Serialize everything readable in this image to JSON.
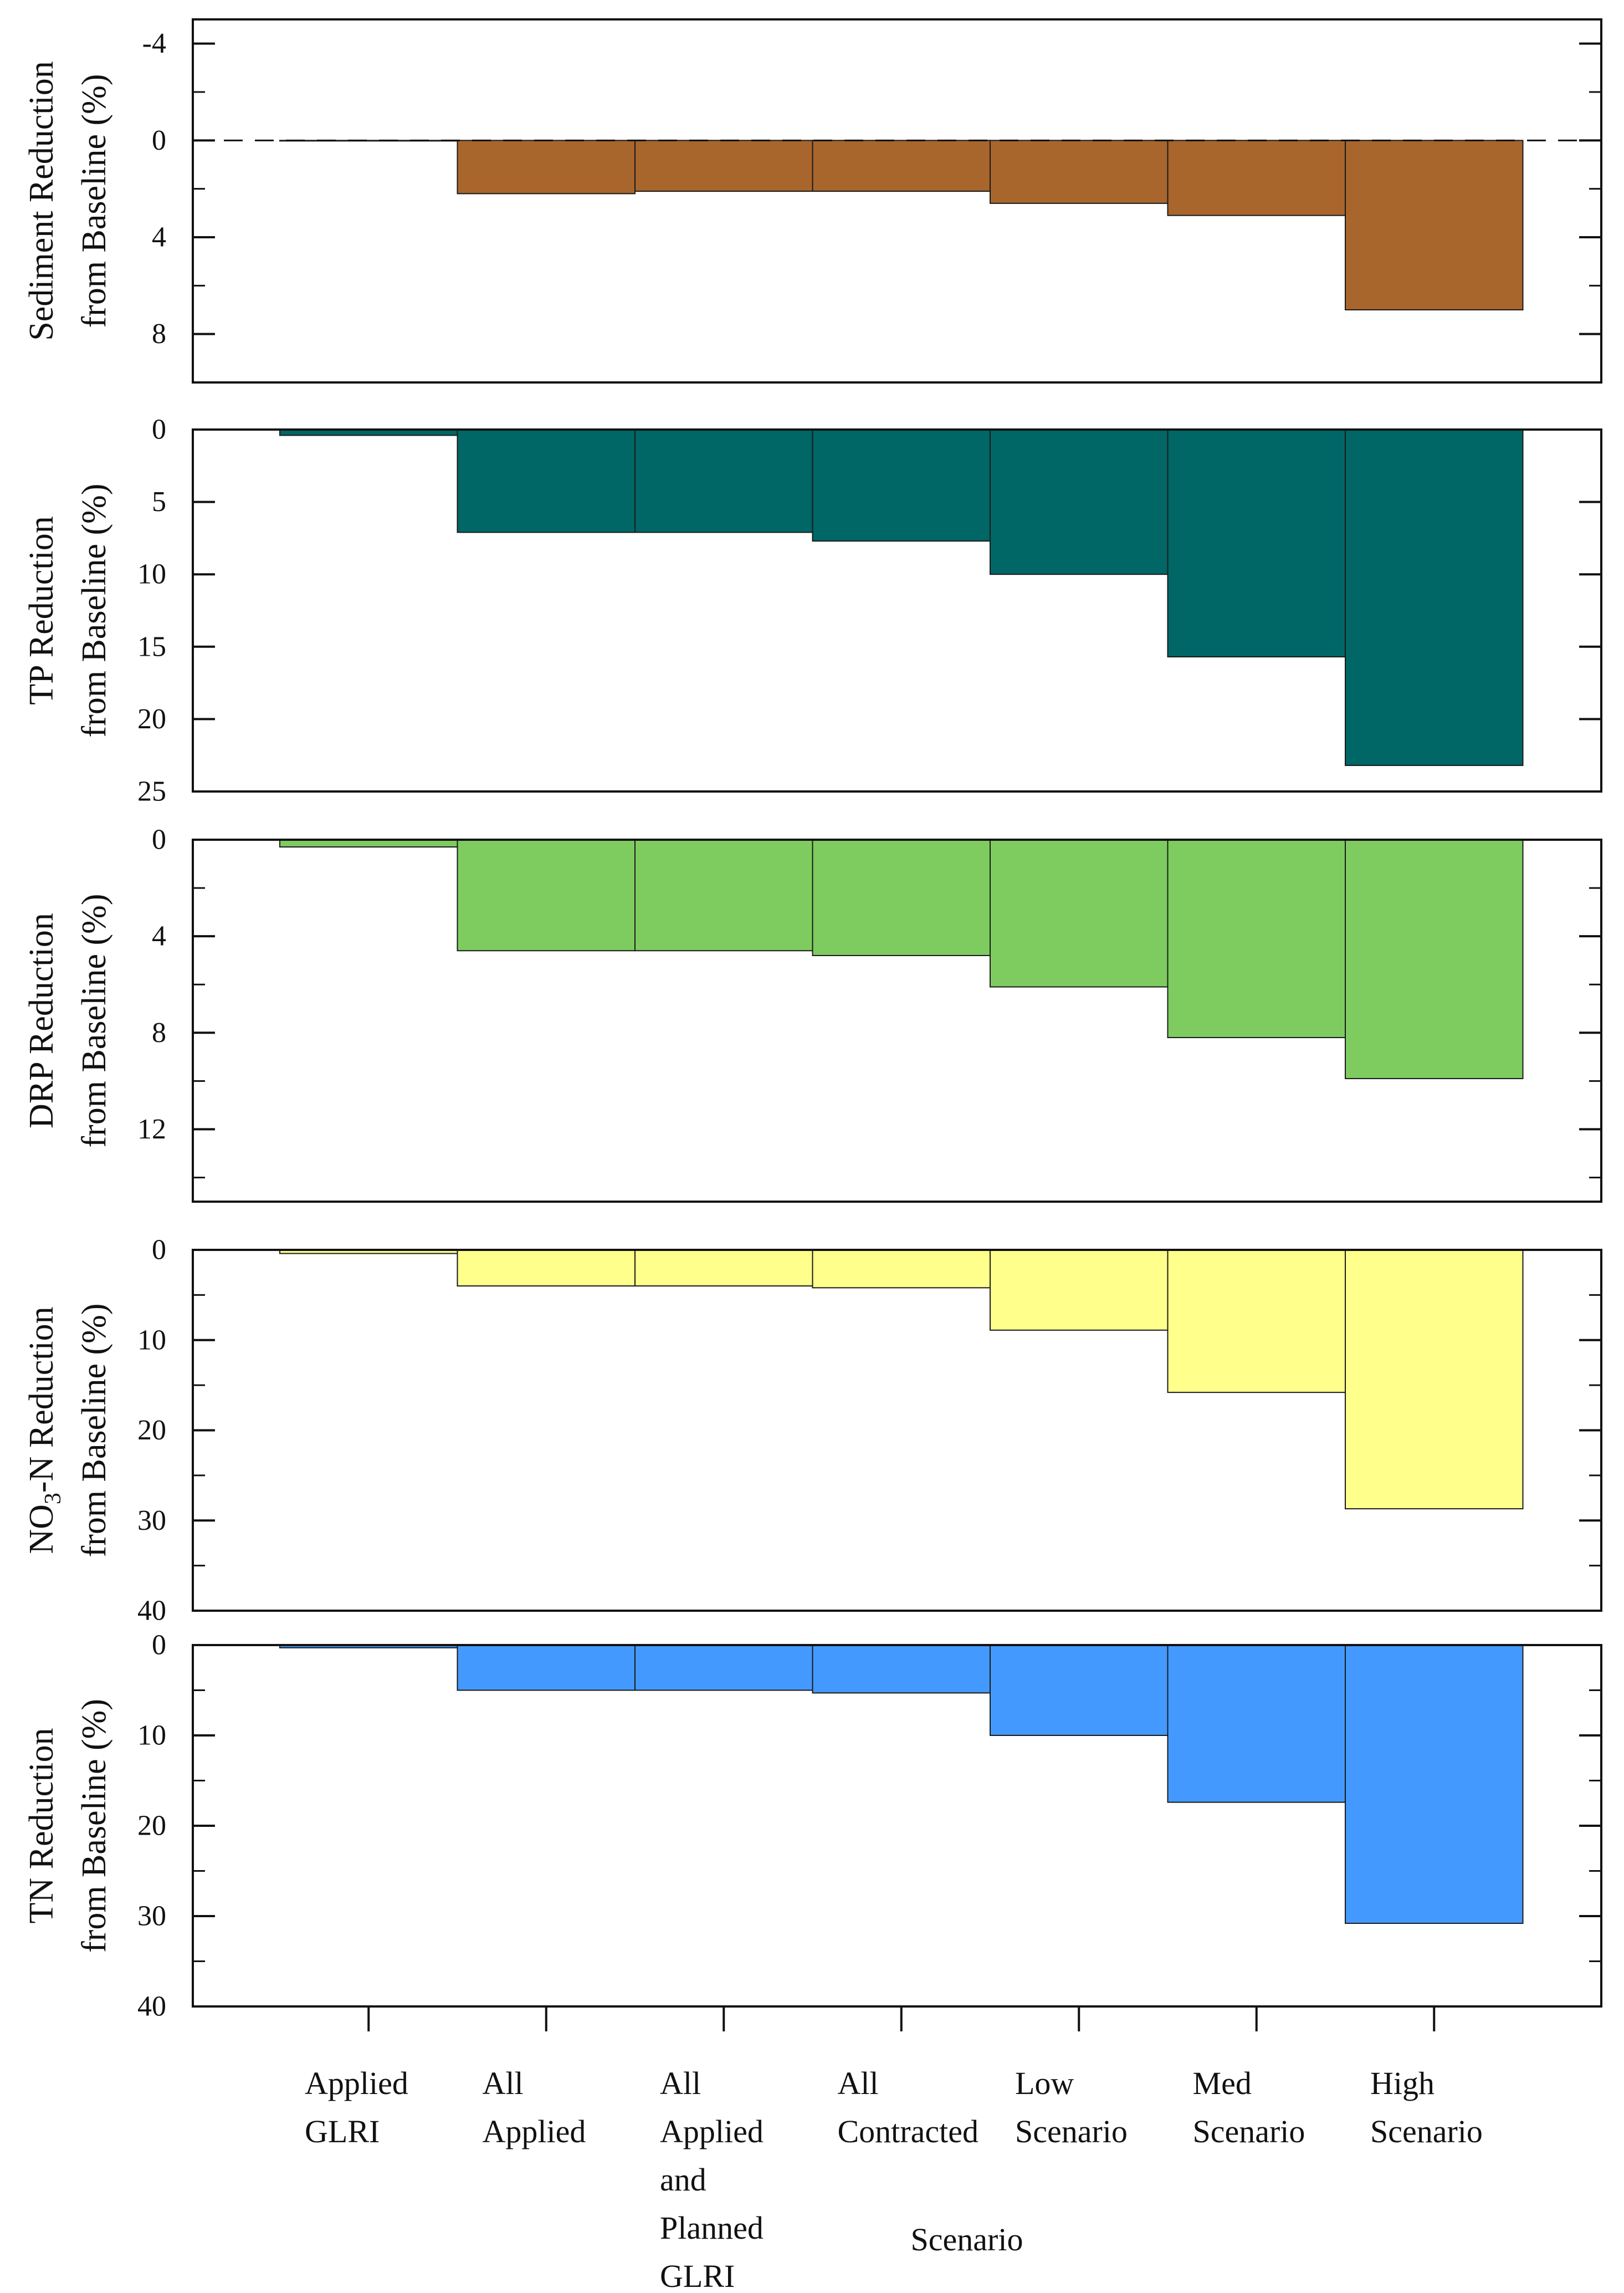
{
  "chart_data": {
    "type": "bar",
    "xlabel": "Scenario",
    "categories": [
      [
        "Applied",
        "GLRI"
      ],
      [
        "All",
        "Applied"
      ],
      [
        "All",
        "Applied",
        "and",
        "Planned",
        "GLRI"
      ],
      [
        "All",
        "Contracted"
      ],
      [
        "Low",
        "Scenario"
      ],
      [
        "Med",
        "Scenario"
      ],
      [
        "High",
        "Scenario"
      ]
    ],
    "panels": [
      {
        "name": "sediment",
        "ylabel": [
          "Sediment Reduction",
          "from Baseline (%)"
        ],
        "ylim": [
          -5,
          10
        ],
        "ticks": [
          -4,
          0,
          4,
          8
        ],
        "tick_labels": [
          "-4",
          "0",
          "4",
          "8"
        ],
        "minor_ticks": [
          -2,
          2,
          6,
          10
        ],
        "baseline_dashed": true,
        "color": "#A8652C",
        "values": [
          0.0,
          2.2,
          2.1,
          2.1,
          2.6,
          3.1,
          7.0
        ]
      },
      {
        "name": "tp",
        "ylabel": [
          "TP Reduction",
          "from Baseline (%)"
        ],
        "ylim": [
          0,
          25
        ],
        "ticks": [
          0,
          5,
          10,
          15,
          20,
          25
        ],
        "tick_labels": [
          "0",
          "5",
          "10",
          "15",
          "20",
          "25"
        ],
        "minor_ticks": [],
        "baseline_dashed": false,
        "color": "#006666",
        "values": [
          0.4,
          7.1,
          7.1,
          7.7,
          10.0,
          15.7,
          23.2
        ]
      },
      {
        "name": "drp",
        "ylabel": [
          "DRP Reduction",
          "from Baseline (%)"
        ],
        "ylim": [
          0,
          15
        ],
        "ticks": [
          0,
          4,
          8,
          12
        ],
        "tick_labels": [
          "0",
          "4",
          "8",
          "12"
        ],
        "minor_ticks": [
          2,
          6,
          10,
          14
        ],
        "baseline_dashed": false,
        "color": "#7ECC60",
        "values": [
          0.3,
          4.6,
          4.6,
          4.8,
          6.1,
          8.2,
          9.9
        ]
      },
      {
        "name": "no3n",
        "ylabel": [
          "NO3-N Reduction",
          "from Baseline (%)"
        ],
        "ylabel_subscript": {
          "base": "NO",
          "sub": "3",
          "rest": "-N Reduction"
        },
        "ylim": [
          0,
          40
        ],
        "ticks": [
          0,
          10,
          20,
          30,
          40
        ],
        "tick_labels": [
          "0",
          "10",
          "20",
          "30",
          "40"
        ],
        "minor_ticks": [
          5,
          15,
          25,
          35
        ],
        "baseline_dashed": false,
        "color": "#FFFF8C",
        "values": [
          0.4,
          4.0,
          4.0,
          4.2,
          8.9,
          15.8,
          28.7
        ]
      },
      {
        "name": "tn",
        "ylabel": [
          "TN Reduction",
          "from Baseline (%)"
        ],
        "ylim": [
          0,
          40
        ],
        "ticks": [
          0,
          10,
          20,
          30,
          40
        ],
        "tick_labels": [
          "0",
          "10",
          "20",
          "30",
          "40"
        ],
        "minor_ticks": [
          5,
          15,
          25,
          35
        ],
        "baseline_dashed": false,
        "color": "#4499FF",
        "values": [
          0.3,
          5.0,
          5.0,
          5.3,
          10.0,
          17.4,
          30.8
        ]
      }
    ]
  }
}
